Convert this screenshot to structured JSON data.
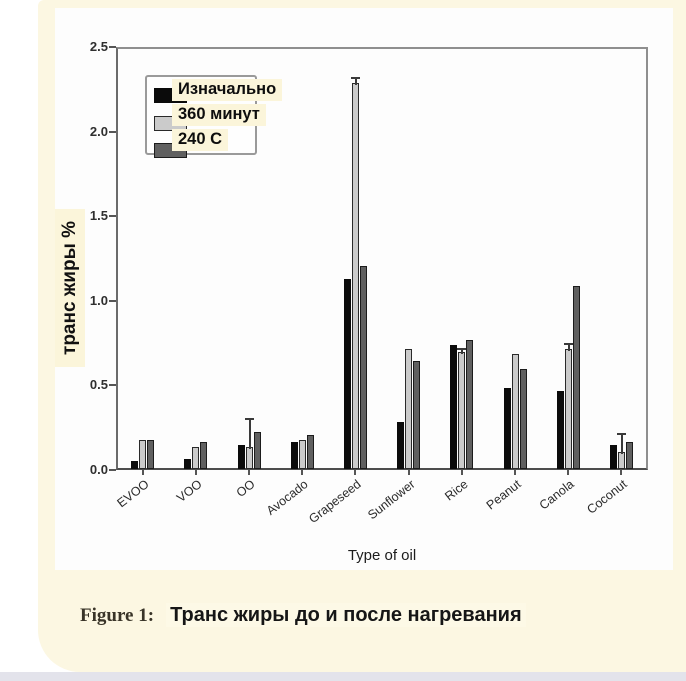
{
  "page": {
    "background": "#ffffff",
    "card_color": "#fcf7e2",
    "panel_color": "#fdfdfd",
    "footer_bar_color": "#e3e3eb"
  },
  "chart_data": {
    "type": "bar",
    "title": "",
    "xlabel": "Type of oil",
    "ylabel": "транс жиры %",
    "ylim": [
      0,
      2.5
    ],
    "yticks": [
      "0.0",
      "0.5",
      "1.0",
      "1.5",
      "2.0",
      "2.5"
    ],
    "grid": false,
    "legend_position": "upper-left",
    "categories": [
      "EVOO",
      "VOO",
      "OO",
      "Avocado",
      "Grapeseed",
      "Sunflower",
      "Rice",
      "Peanut",
      "Canola",
      "Coconut"
    ],
    "series": [
      {
        "name": "Изначально",
        "color": "#0b0b0b",
        "border": "#0b0b0b",
        "values": [
          0.05,
          0.06,
          0.14,
          0.16,
          1.12,
          0.28,
          0.73,
          0.48,
          0.46,
          0.14
        ]
      },
      {
        "name": "360 минут",
        "color": "#cbcbcb",
        "border": "#2a2a2a",
        "values": [
          0.17,
          0.13,
          0.13,
          0.17,
          2.28,
          0.71,
          0.69,
          0.68,
          0.71,
          0.1
        ],
        "error_top": [
          null,
          null,
          0.31,
          null,
          2.32,
          null,
          0.72,
          null,
          0.75,
          0.22
        ]
      },
      {
        "name": "240 C",
        "color": "#606060",
        "border": "#1c1c1c",
        "values": [
          0.17,
          0.16,
          0.22,
          0.2,
          1.2,
          0.64,
          0.76,
          0.59,
          1.08,
          0.16
        ]
      }
    ]
  },
  "caption": {
    "prefix": "Figure 1:",
    "text": "Транс жиры до и после нагревания"
  }
}
